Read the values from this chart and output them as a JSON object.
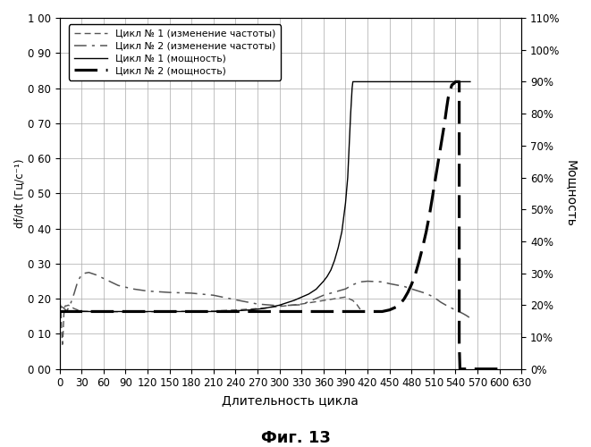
{
  "title": "Фиг. 13",
  "xlabel": "Длительность цикла",
  "ylabel_left": "df/dt (Гц/с⁻¹)",
  "ylabel_right": "Мощность",
  "xlim": [
    0,
    630
  ],
  "ylim_left": [
    0.0,
    1.0
  ],
  "ylim_right": [
    0.0,
    1.1
  ],
  "xticks": [
    0,
    30,
    60,
    90,
    120,
    150,
    180,
    210,
    240,
    270,
    300,
    330,
    360,
    390,
    420,
    450,
    480,
    510,
    540,
    570,
    600,
    630
  ],
  "yticks_left": [
    0.0,
    0.1,
    0.2,
    0.3,
    0.4,
    0.5,
    0.6,
    0.7,
    0.8,
    0.9,
    1.0
  ],
  "yticks_right_vals": [
    0.0,
    0.1,
    0.2,
    0.3,
    0.4,
    0.5,
    0.6,
    0.7,
    0.8,
    0.9,
    1.0,
    1.1
  ],
  "yticks_right_labels": [
    "0%",
    "10%",
    "20%",
    "30%",
    "40%",
    "50%",
    "60%",
    "70%",
    "80%",
    "90%",
    "100%",
    "110%"
  ],
  "legend": [
    "Цикл № 1 (изменение частоты)",
    "Цикл № 2 (изменение частоты)",
    "Цикл № 1 (мощность)",
    "Цикл № 2 (мощность)"
  ],
  "background_color": "#ffffff",
  "grid_color": "#aaaaaa",
  "c1_freq_x": [
    0,
    1,
    2,
    3,
    4,
    5,
    6,
    7,
    8,
    10,
    12,
    15,
    20,
    25,
    30,
    40,
    50,
    60,
    80,
    100,
    120,
    150,
    180,
    210,
    240,
    270,
    300,
    330,
    360,
    390,
    400,
    405,
    410
  ],
  "c1_freq_y": [
    0.18,
    0.185,
    0.175,
    0.11,
    0.07,
    0.1,
    0.155,
    0.175,
    0.18,
    0.18,
    0.182,
    0.178,
    0.172,
    0.168,
    0.165,
    0.164,
    0.163,
    0.163,
    0.163,
    0.163,
    0.163,
    0.163,
    0.165,
    0.165,
    0.168,
    0.172,
    0.178,
    0.185,
    0.195,
    0.205,
    0.195,
    0.185,
    0.17
  ],
  "c2_freq_x": [
    0,
    5,
    10,
    15,
    20,
    25,
    30,
    35,
    40,
    50,
    60,
    70,
    80,
    100,
    120,
    150,
    180,
    210,
    240,
    270,
    300,
    330,
    360,
    390,
    400,
    410,
    420,
    440,
    450,
    470,
    480,
    500,
    510,
    520,
    530,
    540,
    550,
    555,
    560
  ],
  "c2_freq_y": [
    0.18,
    0.175,
    0.165,
    0.185,
    0.215,
    0.25,
    0.268,
    0.273,
    0.275,
    0.268,
    0.258,
    0.248,
    0.238,
    0.228,
    0.222,
    0.218,
    0.216,
    0.21,
    0.197,
    0.185,
    0.18,
    0.183,
    0.21,
    0.228,
    0.24,
    0.248,
    0.25,
    0.248,
    0.243,
    0.235,
    0.228,
    0.215,
    0.205,
    0.19,
    0.178,
    0.168,
    0.158,
    0.152,
    0.145
  ],
  "c1_power_x": [
    0,
    180,
    200,
    220,
    240,
    260,
    280,
    300,
    320,
    340,
    350,
    360,
    365,
    370,
    375,
    380,
    385,
    390,
    393,
    395,
    396,
    397,
    398,
    399,
    400,
    560
  ],
  "c1_power_y": [
    0.18,
    0.18,
    0.18,
    0.18,
    0.182,
    0.185,
    0.19,
    0.2,
    0.215,
    0.235,
    0.25,
    0.275,
    0.29,
    0.31,
    0.34,
    0.38,
    0.43,
    0.52,
    0.6,
    0.7,
    0.75,
    0.8,
    0.84,
    0.88,
    0.9,
    0.9
  ],
  "c2_power_x": [
    0,
    420,
    440,
    450,
    460,
    465,
    470,
    475,
    480,
    485,
    490,
    495,
    500,
    505,
    510,
    515,
    520,
    525,
    528,
    530,
    533,
    535,
    538,
    540,
    542,
    544,
    545,
    545,
    546,
    600
  ],
  "c2_power_y": [
    0.18,
    0.18,
    0.18,
    0.185,
    0.195,
    0.205,
    0.22,
    0.24,
    0.265,
    0.295,
    0.335,
    0.38,
    0.43,
    0.49,
    0.56,
    0.63,
    0.7,
    0.77,
    0.82,
    0.85,
    0.875,
    0.89,
    0.895,
    0.9,
    0.9,
    0.9,
    0.9,
    0.08,
    0.0,
    0.0
  ]
}
